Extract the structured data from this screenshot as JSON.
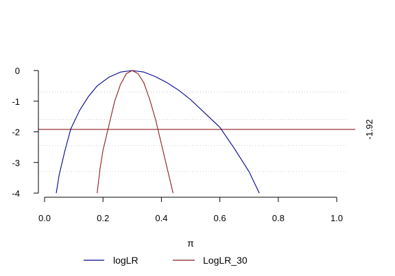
{
  "chart_data": {
    "type": "line",
    "title": "",
    "xlabel": "π",
    "ylabel": "",
    "xlim": [
      0,
      1
    ],
    "ylim": [
      -4,
      0
    ],
    "x_ticks": [
      "0.0",
      "0.2",
      "0.4",
      "0.6",
      "0.8",
      "1.0"
    ],
    "y_ticks": [
      "0",
      "-1",
      "-2",
      "-3",
      "-4"
    ],
    "reference_line": {
      "y": -1.92,
      "label": "-1.92",
      "color": "#8b1a1a"
    },
    "dotted_gridlines_y": [
      -0.7,
      -1.6,
      -2.45,
      -3.3
    ],
    "legend": {
      "placement": "bottom"
    },
    "series": [
      {
        "name": "logLR",
        "color": "#00008b",
        "x": [
          0.04,
          0.05,
          0.07,
          0.09,
          0.12,
          0.15,
          0.18,
          0.22,
          0.26,
          0.3,
          0.34,
          0.38,
          0.42,
          0.46,
          0.5,
          0.55,
          0.6,
          0.65,
          0.7,
          0.735
        ],
        "y": [
          -4.0,
          -3.4,
          -2.6,
          -1.9,
          -1.3,
          -0.85,
          -0.5,
          -0.22,
          -0.05,
          0.0,
          -0.05,
          -0.2,
          -0.4,
          -0.65,
          -0.95,
          -1.4,
          -1.85,
          -2.55,
          -3.3,
          -4.0
        ]
      },
      {
        "name": "LogLR_30",
        "color": "#8b1a1a",
        "x": [
          0.18,
          0.19,
          0.2,
          0.22,
          0.24,
          0.26,
          0.28,
          0.3,
          0.32,
          0.34,
          0.36,
          0.38,
          0.4,
          0.42,
          0.44
        ],
        "y": [
          -4.0,
          -3.2,
          -2.6,
          -1.8,
          -1.0,
          -0.45,
          -0.1,
          0.0,
          -0.1,
          -0.4,
          -0.95,
          -1.6,
          -2.4,
          -3.2,
          -4.0
        ]
      }
    ]
  }
}
